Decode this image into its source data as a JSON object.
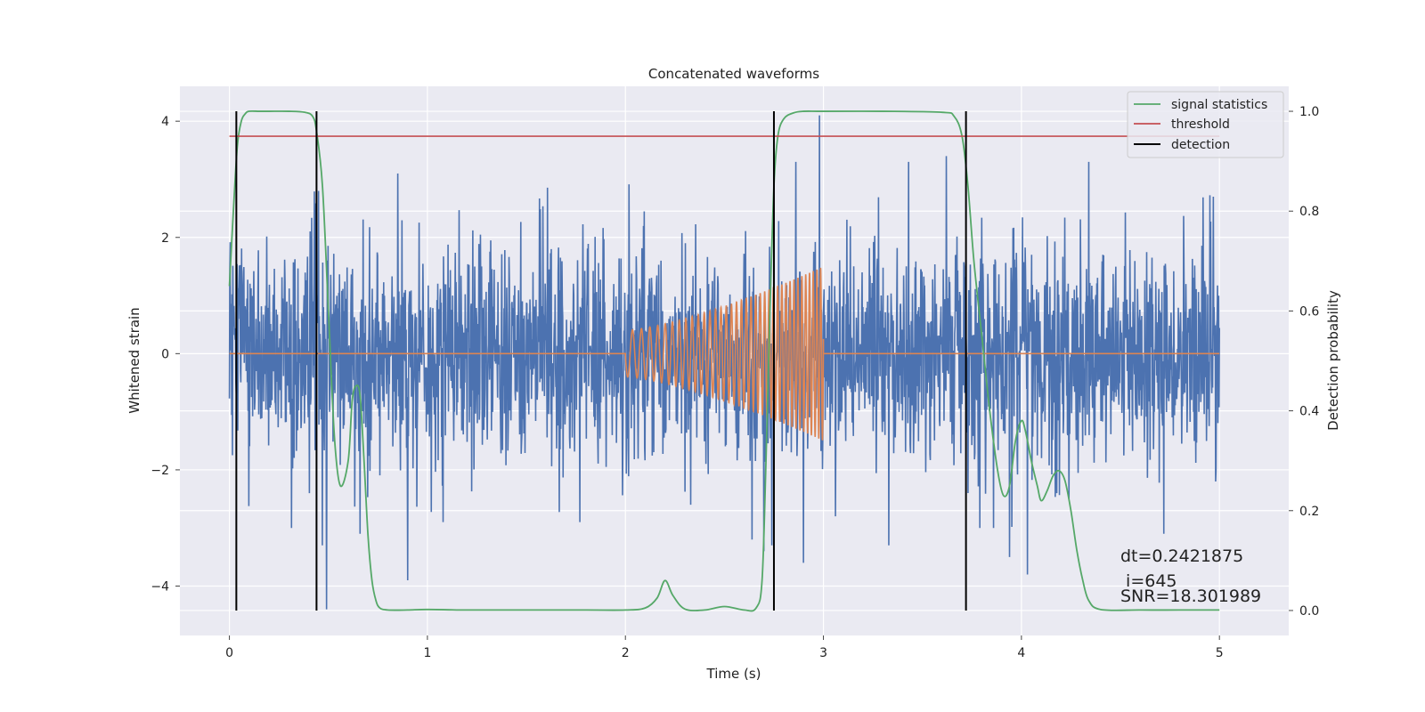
{
  "chart_data": {
    "type": "line",
    "title": "Concatenated waveforms",
    "xlabel": "Time (s)",
    "ylabel_left": "Whitened strain",
    "ylabel_right": "Detection probability",
    "xlim": [
      -0.25,
      5.35
    ],
    "ylim_left": [
      -4.85,
      4.6
    ],
    "ylim_right": [
      -0.05,
      1.05
    ],
    "x_ticks": [
      0,
      1,
      2,
      3,
      4,
      5
    ],
    "y_left_ticks": [
      -4,
      -2,
      0,
      2,
      4
    ],
    "y_right_ticks": [
      0.0,
      0.2,
      0.4,
      0.6,
      0.8,
      1.0
    ],
    "x_tick_labels": [
      "0",
      "1",
      "2",
      "3",
      "4",
      "5"
    ],
    "y_left_tick_labels": [
      "−4",
      "−2",
      "0",
      "2",
      "4"
    ],
    "y_right_tick_labels": [
      "0.0",
      "0.2",
      "0.4",
      "0.6",
      "0.8",
      "1.0"
    ],
    "grid": true,
    "legend_position": "top-right",
    "colors": {
      "background": "#eaeaf2",
      "grid": "#ffffff",
      "noise": "#4c72b0",
      "injection": "#dd8452",
      "statistic": "#55a868",
      "threshold": "#c44e52",
      "detection": "#000000"
    },
    "series": [
      {
        "name": "",
        "axis": "left",
        "kind": "whitened noise (dense)",
        "x_range": [
          0,
          5
        ],
        "spread_std": 0.9,
        "spikes": [
          [
            0.45,
            2.8
          ],
          [
            0.47,
            -3.3
          ],
          [
            0.49,
            -4.4
          ],
          [
            0.66,
            -3.1
          ],
          [
            0.9,
            -3.9
          ],
          [
            0.85,
            3.1
          ],
          [
            1.08,
            -2.9
          ],
          [
            1.77,
            -2.9
          ],
          [
            2.33,
            -2.6
          ],
          [
            2.64,
            -3.2
          ],
          [
            2.7,
            -3.4
          ],
          [
            2.74,
            -3.3
          ],
          [
            2.86,
            3.3
          ],
          [
            2.9,
            -3.6
          ],
          [
            2.98,
            4.1
          ],
          [
            3.06,
            -2.8
          ],
          [
            3.33,
            -3.3
          ],
          [
            3.43,
            3.3
          ],
          [
            3.62,
            3.4
          ],
          [
            3.73,
            -2.4
          ],
          [
            3.86,
            -3.0
          ],
          [
            3.94,
            -3.5
          ],
          [
            4.03,
            -3.8
          ],
          [
            4.34,
            3.3
          ],
          [
            4.72,
            -3.1
          ],
          [
            4.98,
            -2.2
          ],
          [
            4.97,
            2.7
          ]
        ]
      },
      {
        "name": "",
        "axis": "left",
        "kind": "injected chirp",
        "start": 2.0,
        "end": 3.0,
        "amp_start": 0.4,
        "amp_end": 1.5,
        "freq_start": 20,
        "freq_end": 55
      },
      {
        "name": "signal statistics",
        "axis": "right",
        "x": [
          0.0,
          0.02,
          0.04,
          0.06,
          0.08,
          0.1,
          0.15,
          0.2,
          0.3,
          0.38,
          0.42,
          0.44,
          0.47,
          0.5,
          0.53,
          0.56,
          0.6,
          0.62,
          0.64,
          0.66,
          0.68,
          0.7,
          0.72,
          0.74,
          0.76,
          0.8,
          0.9,
          1.0,
          1.2,
          1.5,
          1.8,
          2.0,
          2.1,
          2.16,
          2.2,
          2.24,
          2.3,
          2.4,
          2.5,
          2.6,
          2.66,
          2.69,
          2.71,
          2.73,
          2.75,
          2.77,
          2.8,
          2.85,
          2.9,
          3.0,
          3.3,
          3.6,
          3.66,
          3.7,
          3.73,
          3.76,
          3.8,
          3.84,
          3.88,
          3.91,
          3.94,
          3.97,
          4.0,
          4.02,
          4.05,
          4.08,
          4.1,
          4.13,
          4.16,
          4.19,
          4.22,
          4.25,
          4.28,
          4.31,
          4.34,
          4.4,
          4.6,
          4.8,
          5.0
        ],
        "y": [
          0.65,
          0.8,
          0.93,
          0.98,
          0.995,
          1.0,
          1.0,
          1.0,
          1.0,
          0.998,
          0.99,
          0.96,
          0.85,
          0.6,
          0.35,
          0.25,
          0.3,
          0.42,
          0.45,
          0.43,
          0.3,
          0.15,
          0.06,
          0.02,
          0.005,
          0.001,
          0.001,
          0.002,
          0.001,
          0.001,
          0.001,
          0.001,
          0.005,
          0.025,
          0.06,
          0.03,
          0.003,
          0.001,
          0.008,
          0.001,
          0.005,
          0.06,
          0.3,
          0.6,
          0.85,
          0.95,
          0.985,
          0.997,
          1.0,
          1.0,
          1.0,
          0.998,
          0.99,
          0.95,
          0.85,
          0.7,
          0.55,
          0.4,
          0.28,
          0.23,
          0.25,
          0.34,
          0.38,
          0.36,
          0.3,
          0.25,
          0.22,
          0.24,
          0.27,
          0.28,
          0.26,
          0.2,
          0.12,
          0.06,
          0.02,
          0.002,
          0.001,
          0.001,
          0.001
        ]
      },
      {
        "name": "threshold",
        "axis": "right",
        "x": [
          0,
          5
        ],
        "y": [
          0.95,
          0.95
        ]
      },
      {
        "name": "detection",
        "axis": "right",
        "vlines": [
          0.035,
          0.44,
          2.75,
          3.72
        ],
        "y_span": [
          0.0,
          1.0
        ]
      }
    ],
    "annotation": {
      "line1": "dt=0.2421875",
      "line2": " i=645",
      "line3": "SNR=18.301989"
    }
  }
}
